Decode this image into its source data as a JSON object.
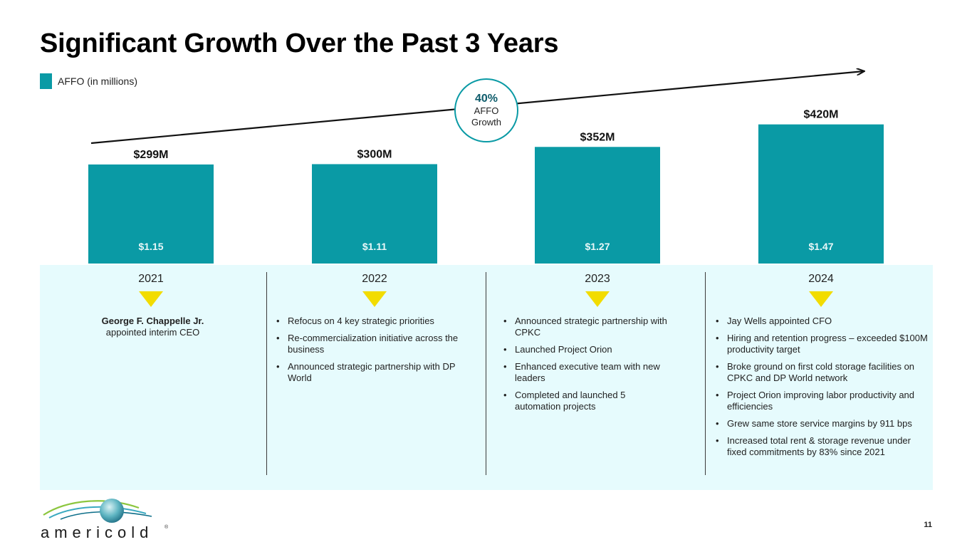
{
  "title": "Significant Growth Over the Past 3 Years",
  "legend": {
    "label": "AFFO (in millions)",
    "color": "#0a9aa5"
  },
  "growth": {
    "value": "40%",
    "label": "AFFO Growth"
  },
  "chart_data": {
    "type": "bar",
    "categories": [
      "2021",
      "2022",
      "2023",
      "2024"
    ],
    "series": [
      {
        "name": "AFFO (in millions)",
        "values": [
          299,
          300,
          352,
          420
        ]
      }
    ],
    "value_labels": [
      "$299M",
      "$300M",
      "$352M",
      "$420M"
    ],
    "inner_labels": [
      "$1.15",
      "$1.11",
      "$1.27",
      "$1.47"
    ],
    "ylim": [
      0,
      430
    ],
    "bar_color": "#0a9aa5",
    "grid": false
  },
  "timeline": {
    "y2021": {
      "name": "George F. Chappelle Jr.",
      "text": "appointed interim CEO"
    },
    "y2022": [
      "Refocus on 4 key strategic priorities",
      "Re-commercialization initiative across the business",
      "Announced strategic partnership with DP World"
    ],
    "y2023": [
      "Announced strategic partnership with CPKC",
      "Launched Project Orion",
      "Enhanced executive team with new leaders",
      "Completed and launched 5 automation projects"
    ],
    "y2024": [
      "Jay Wells appointed CFO",
      "Hiring and retention progress – exceeded $100M productivity target",
      "Broke ground on first cold storage facilities on CPKC and DP World network",
      "Project Orion improving labor productivity and efficiencies",
      "Grew same store service margins by 911 bps",
      "Increased total rent & storage revenue under fixed commitments by 83% since 2021"
    ]
  },
  "footer": {
    "logo_text": "americold",
    "page_number": "11"
  },
  "colors": {
    "accent": "#0a9aa5",
    "marker": "#f2dc00",
    "panel": "#e6fbfd"
  }
}
